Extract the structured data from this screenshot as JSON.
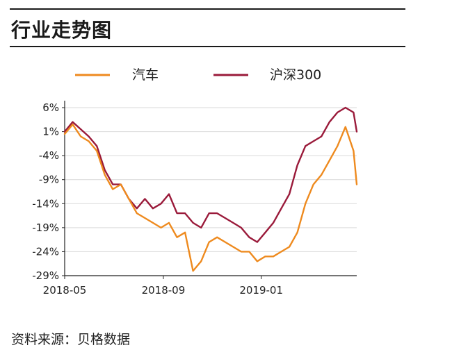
{
  "header": {
    "title": "行业走势图"
  },
  "footer": {
    "source": "资料来源：贝格数据"
  },
  "chart_data": {
    "type": "line",
    "title": "",
    "xlabel": "",
    "ylabel": "",
    "y_tick_labels": [
      "6%",
      "1%",
      "-4%",
      "-9%",
      "-14%",
      "-19%",
      "-24%",
      "-29%"
    ],
    "x_tick_labels": [
      "2018-05",
      "2018-09",
      "2019-01"
    ],
    "ylim": [
      -29,
      6
    ],
    "grid": "horizontal",
    "legend_position": "top",
    "colors": {
      "汽车": "#ee8a1e",
      "沪深300": "#9a1a3a",
      "grid": "#d9d9d9",
      "axis": "#222222"
    },
    "x": [
      "2018-05-01",
      "2018-05-11",
      "2018-05-21",
      "2018-05-31",
      "2018-06-10",
      "2018-06-20",
      "2018-06-30",
      "2018-07-10",
      "2018-07-20",
      "2018-07-30",
      "2018-08-09",
      "2018-08-19",
      "2018-08-29",
      "2018-09-08",
      "2018-09-18",
      "2018-09-28",
      "2018-10-08",
      "2018-10-18",
      "2018-10-28",
      "2018-11-07",
      "2018-11-17",
      "2018-11-27",
      "2018-12-07",
      "2018-12-17",
      "2018-12-27",
      "2019-01-06",
      "2019-01-16",
      "2019-01-26",
      "2019-02-05",
      "2019-02-15",
      "2019-02-25",
      "2019-03-07",
      "2019-03-17",
      "2019-03-27",
      "2019-04-06",
      "2019-04-16",
      "2019-04-26",
      "2019-04-30"
    ],
    "series": [
      {
        "name": "汽车",
        "values": [
          0.5,
          2.5,
          0,
          -1,
          -3,
          -8,
          -11,
          -10,
          -13,
          -16,
          -17,
          -18,
          -19,
          -18,
          -21,
          -20,
          -28,
          -26,
          -22,
          -21,
          -22,
          -23,
          -24,
          -24,
          -26,
          -25,
          -25,
          -24,
          -23,
          -20,
          -14,
          -10,
          -8,
          -5,
          -2,
          2,
          -3,
          -10
        ]
      },
      {
        "name": "沪深300",
        "values": [
          1,
          3,
          1.5,
          0,
          -2,
          -7,
          -10,
          -10,
          -13,
          -15,
          -13,
          -15,
          -14,
          -12,
          -16,
          -16,
          -18,
          -19,
          -16,
          -16,
          -17,
          -18,
          -19,
          -21,
          -22,
          -20,
          -18,
          -15,
          -12,
          -6,
          -2,
          -1,
          0,
          3,
          5,
          6,
          5,
          1
        ]
      }
    ]
  }
}
